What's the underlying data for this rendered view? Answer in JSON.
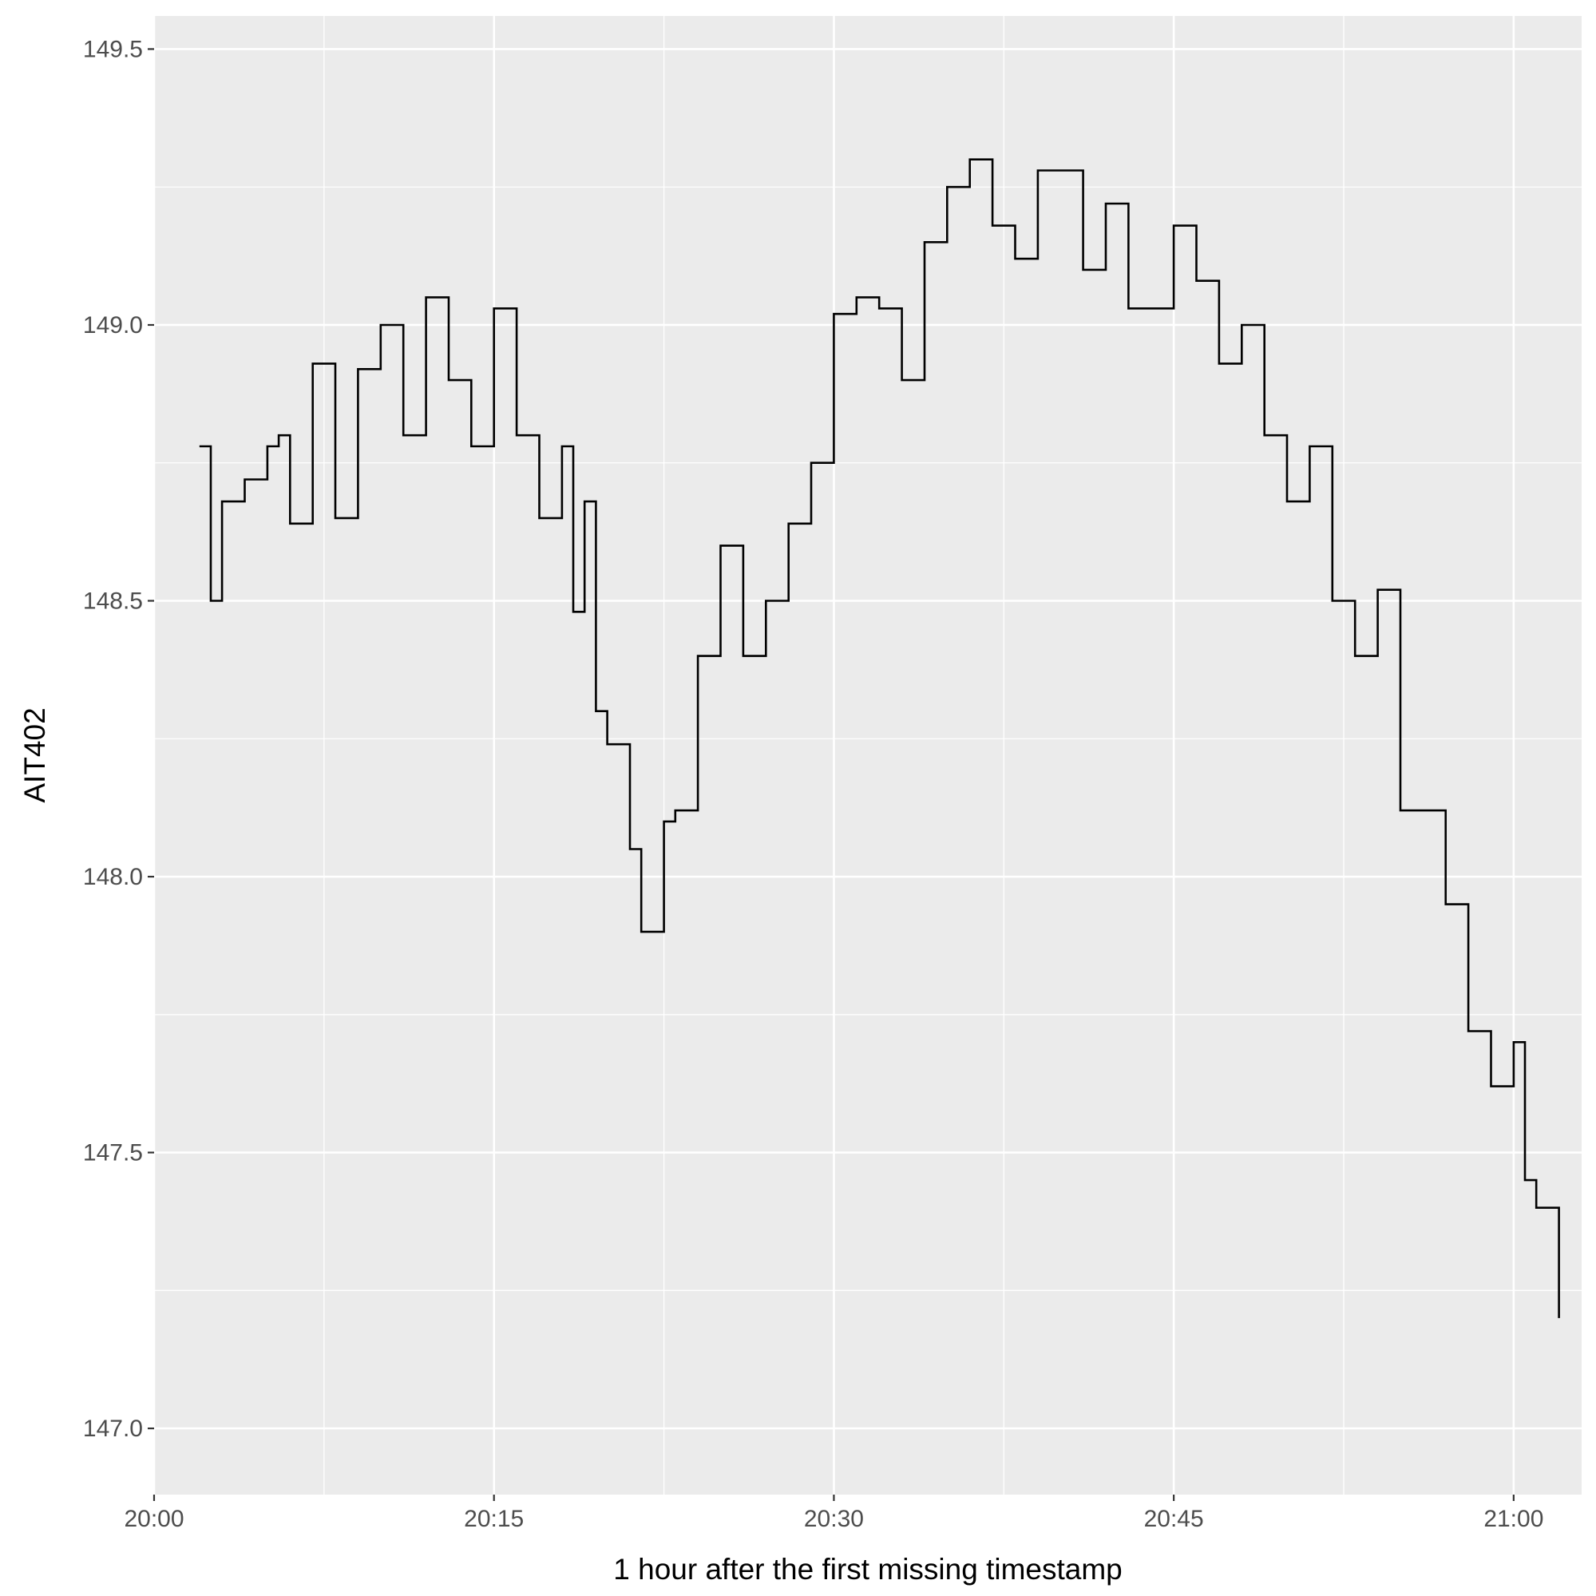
{
  "chart_data": {
    "type": "line",
    "step": true,
    "title": "",
    "xlabel": "1 hour after the first missing timestamp",
    "ylabel": "AIT402",
    "xlim": [
      "20:00",
      "21:03"
    ],
    "ylim": [
      146.88,
      149.56
    ],
    "x_ticks": [
      "20:00",
      "20:15",
      "20:30",
      "20:45",
      "21:00"
    ],
    "y_ticks": [
      "147.0",
      "147.5",
      "148.0",
      "148.5",
      "149.0",
      "149.5"
    ],
    "grid": true,
    "legend": "none",
    "colors": {
      "panel": "#ebebeb",
      "grid": "#ffffff",
      "line": "#000000",
      "tick_text": "#4d4d4d"
    },
    "series": [
      {
        "x": [
          "20:02",
          "20:02:30",
          "20:03",
          "20:04",
          "20:05",
          "20:05:30",
          "20:06",
          "20:07",
          "20:08",
          "20:09",
          "20:10",
          "20:11",
          "20:12",
          "20:13",
          "20:14",
          "20:15",
          "20:16",
          "20:17",
          "20:18",
          "20:18:30",
          "20:19",
          "20:19:30",
          "20:20",
          "20:20:30",
          "20:21",
          "20:21:30",
          "20:22",
          "20:22:30",
          "20:23",
          "20:24",
          "20:25",
          "20:26",
          "20:27",
          "20:28",
          "20:29",
          "20:30",
          "20:31",
          "20:32",
          "20:33",
          "20:34",
          "20:35",
          "20:36",
          "20:37",
          "20:38",
          "20:39",
          "20:40",
          "20:41",
          "20:42",
          "20:43",
          "20:44",
          "20:45",
          "20:46",
          "20:47",
          "20:48",
          "20:49",
          "20:50",
          "20:51",
          "20:52",
          "20:53",
          "20:54",
          "20:55",
          "20:56",
          "20:57",
          "20:58",
          "20:59",
          "21:00",
          "21:00:30",
          "21:01",
          "21:02"
        ],
        "y": [
          148.78,
          148.5,
          148.68,
          148.72,
          148.78,
          148.8,
          148.64,
          148.93,
          148.65,
          148.92,
          149.0,
          148.8,
          149.05,
          148.9,
          148.78,
          149.03,
          148.8,
          148.65,
          148.78,
          148.48,
          148.68,
          148.3,
          148.24,
          148.24,
          148.05,
          147.9,
          147.9,
          148.1,
          148.12,
          148.4,
          148.6,
          148.4,
          148.5,
          148.64,
          148.75,
          149.02,
          149.05,
          149.03,
          148.9,
          149.15,
          149.25,
          149.3,
          149.18,
          149.12,
          149.28,
          149.28,
          149.1,
          149.22,
          149.03,
          149.03,
          149.18,
          149.08,
          148.93,
          149.0,
          148.8,
          148.68,
          148.78,
          148.5,
          148.4,
          148.52,
          148.12,
          148.12,
          147.95,
          147.72,
          147.62,
          147.7,
          147.45,
          147.4,
          147.2
        ]
      }
    ]
  }
}
